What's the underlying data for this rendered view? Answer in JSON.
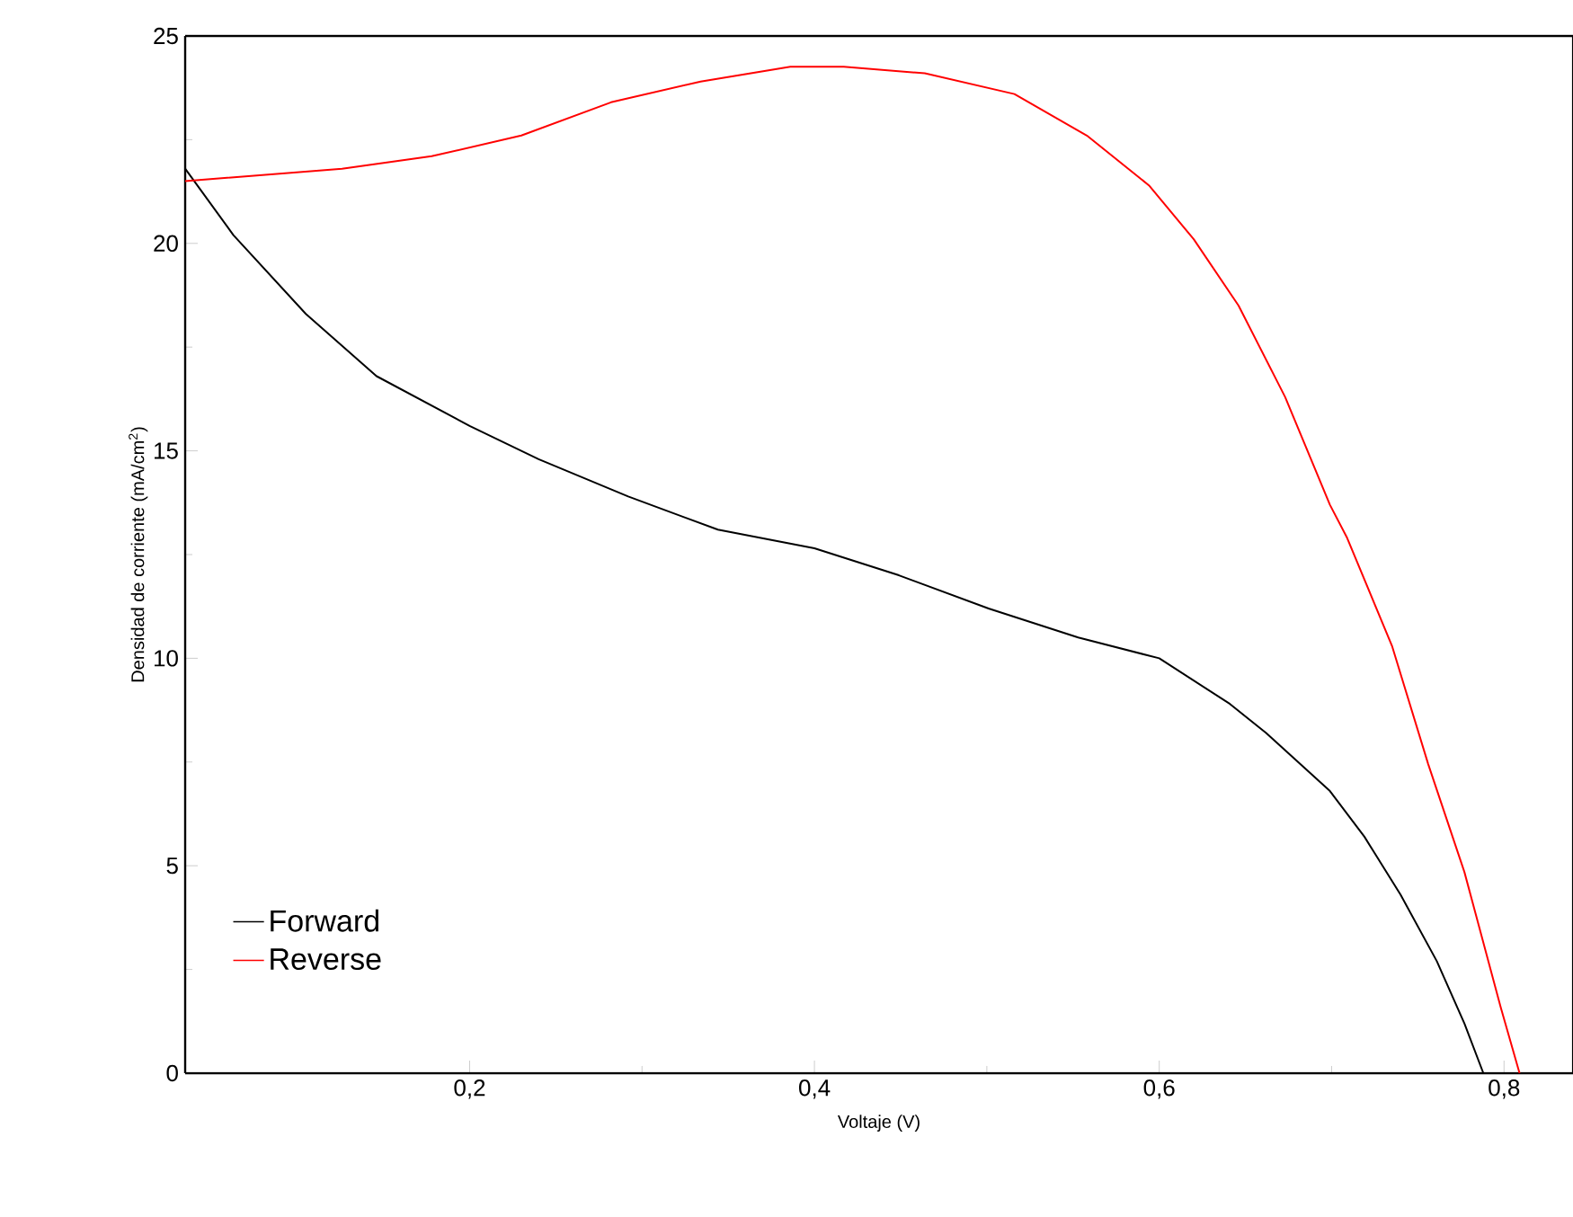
{
  "chart_data": {
    "type": "line",
    "xlabel": "Voltaje (V)",
    "ylabel": "Densidad de corriente (mA/cm$^{2}$)",
    "xlim": [
      0.035,
      0.84
    ],
    "ylim": [
      0,
      25
    ],
    "xticks": [
      {
        "value": 0.2,
        "label": "0,2"
      },
      {
        "value": 0.4,
        "label": "0,4"
      },
      {
        "value": 0.6,
        "label": "0,6"
      },
      {
        "value": 0.8,
        "label": "0,8"
      }
    ],
    "yticks": [
      0,
      5,
      10,
      15,
      20,
      25
    ],
    "legend": "bottom left",
    "marker": "none",
    "line_style": "solid",
    "series": [
      {
        "name": "Forward",
        "color": "#000000",
        "x": [
          0.035,
          0.063,
          0.105,
          0.146,
          0.2,
          0.24,
          0.292,
          0.344,
          0.4,
          0.449,
          0.501,
          0.553,
          0.6,
          0.641,
          0.662,
          0.699,
          0.719,
          0.74,
          0.761,
          0.777,
          0.788
        ],
        "values": [
          21.8,
          20.2,
          18.3,
          16.8,
          15.6,
          14.8,
          13.9,
          13.1,
          12.65,
          12.0,
          11.2,
          10.5,
          10.0,
          8.9,
          8.2,
          6.8,
          5.7,
          4.3,
          2.7,
          1.2,
          0.0
        ]
      },
      {
        "name": "Reverse",
        "color": "#ff0000",
        "x": [
          0.035,
          0.126,
          0.178,
          0.23,
          0.282,
          0.334,
          0.386,
          0.417,
          0.464,
          0.516,
          0.558,
          0.594,
          0.62,
          0.646,
          0.673,
          0.699,
          0.709,
          0.735,
          0.756,
          0.777,
          0.798,
          0.809
        ],
        "values": [
          21.5,
          21.8,
          22.1,
          22.6,
          23.4,
          23.9,
          24.26,
          24.26,
          24.1,
          23.6,
          22.6,
          21.4,
          20.1,
          18.5,
          16.3,
          13.7,
          12.9,
          10.3,
          7.45,
          4.85,
          1.6,
          0.0
        ]
      }
    ]
  }
}
